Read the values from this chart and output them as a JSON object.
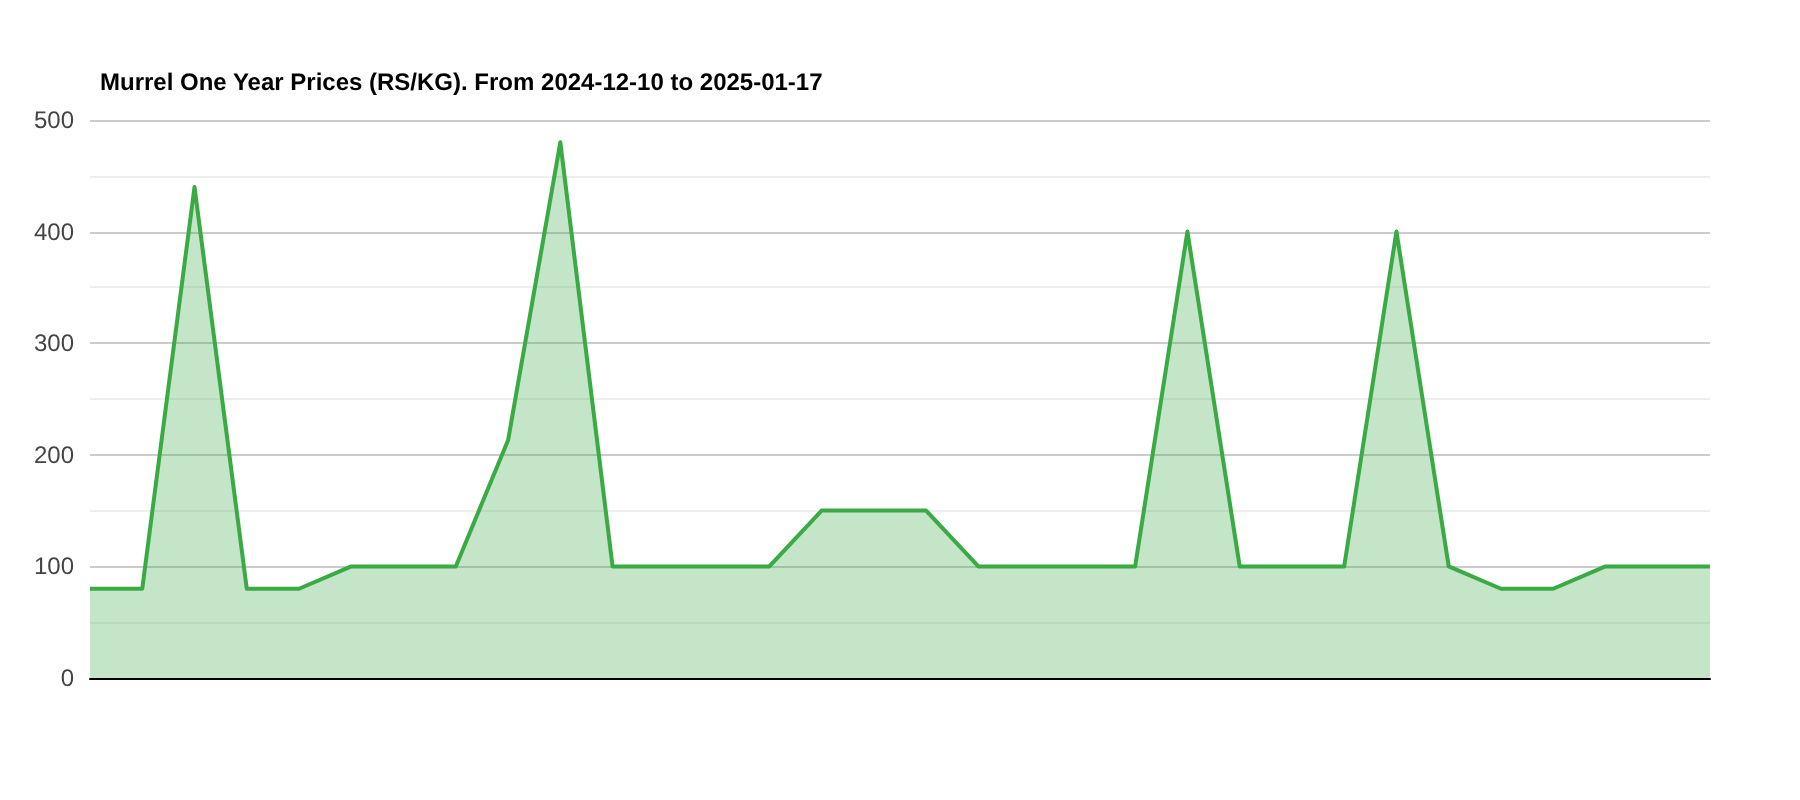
{
  "chart_data": {
    "type": "area",
    "title": "Murrel One Year Prices (RS/KG). From 2024-12-10 to 2025-01-17",
    "categories": [
      null,
      null,
      null,
      null,
      null,
      null,
      null,
      null,
      null,
      null,
      null,
      null,
      null,
      null,
      null,
      null,
      null,
      null,
      null,
      null,
      null,
      null,
      null,
      null,
      null,
      null,
      null,
      null,
      null,
      null,
      null,
      null
    ],
    "series": [
      {
        "color": "#3aaa45",
        "values": [
          80,
          80,
          440,
          80,
          80,
          100,
          100,
          100,
          213,
          480,
          100,
          100,
          100,
          100,
          150,
          150,
          150,
          100,
          100,
          100,
          100,
          400,
          100,
          100,
          100,
          400,
          100,
          80,
          80,
          100,
          100,
          100
        ]
      }
    ],
    "ylim": [
      0,
      500
    ],
    "yticks": [
      0,
      100,
      200,
      300,
      400,
      500
    ],
    "grid": "y",
    "marker": "none",
    "line_style": "solid"
  }
}
